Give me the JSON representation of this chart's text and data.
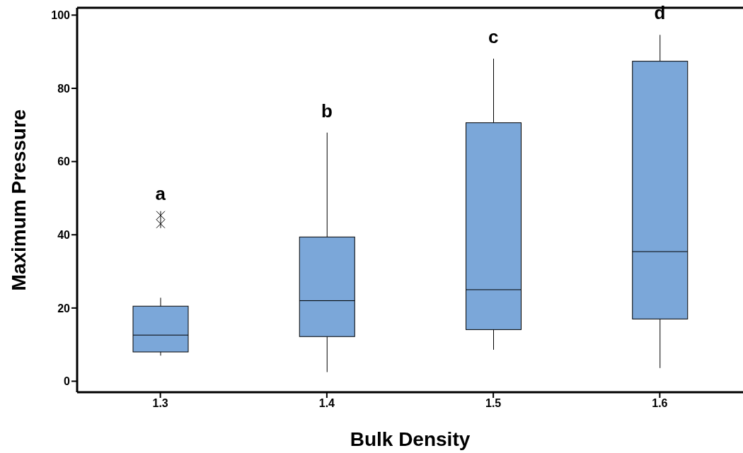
{
  "chart_data": {
    "type": "box",
    "xlabel": "Bulk Density",
    "ylabel": "Maximum Pressure",
    "categories": [
      "1.3",
      "1.4",
      "1.5",
      "1.6"
    ],
    "color": "#7ba7d9",
    "boxes": [
      {
        "low": 7,
        "q1": 8,
        "median": 12.6,
        "q3": 20.5,
        "high": 22.8,
        "outliers": [
          45.3,
          43
        ]
      },
      {
        "low": 2.5,
        "q1": 12.2,
        "median": 22,
        "q3": 39.4,
        "high": 67.9
      },
      {
        "low": 8.6,
        "q1": 14.1,
        "median": 25,
        "q3": 70.6,
        "high": 88.1
      },
      {
        "low": 3.6,
        "q1": 17,
        "median": 35.4,
        "q3": 87.4,
        "high": 94.6
      }
    ],
    "ylim": [
      -3,
      102
    ],
    "yticks": [
      0,
      20,
      40,
      60,
      80,
      100
    ],
    "marker": "cross",
    "annotations": [
      "a",
      "b",
      "c",
      "d"
    ]
  }
}
